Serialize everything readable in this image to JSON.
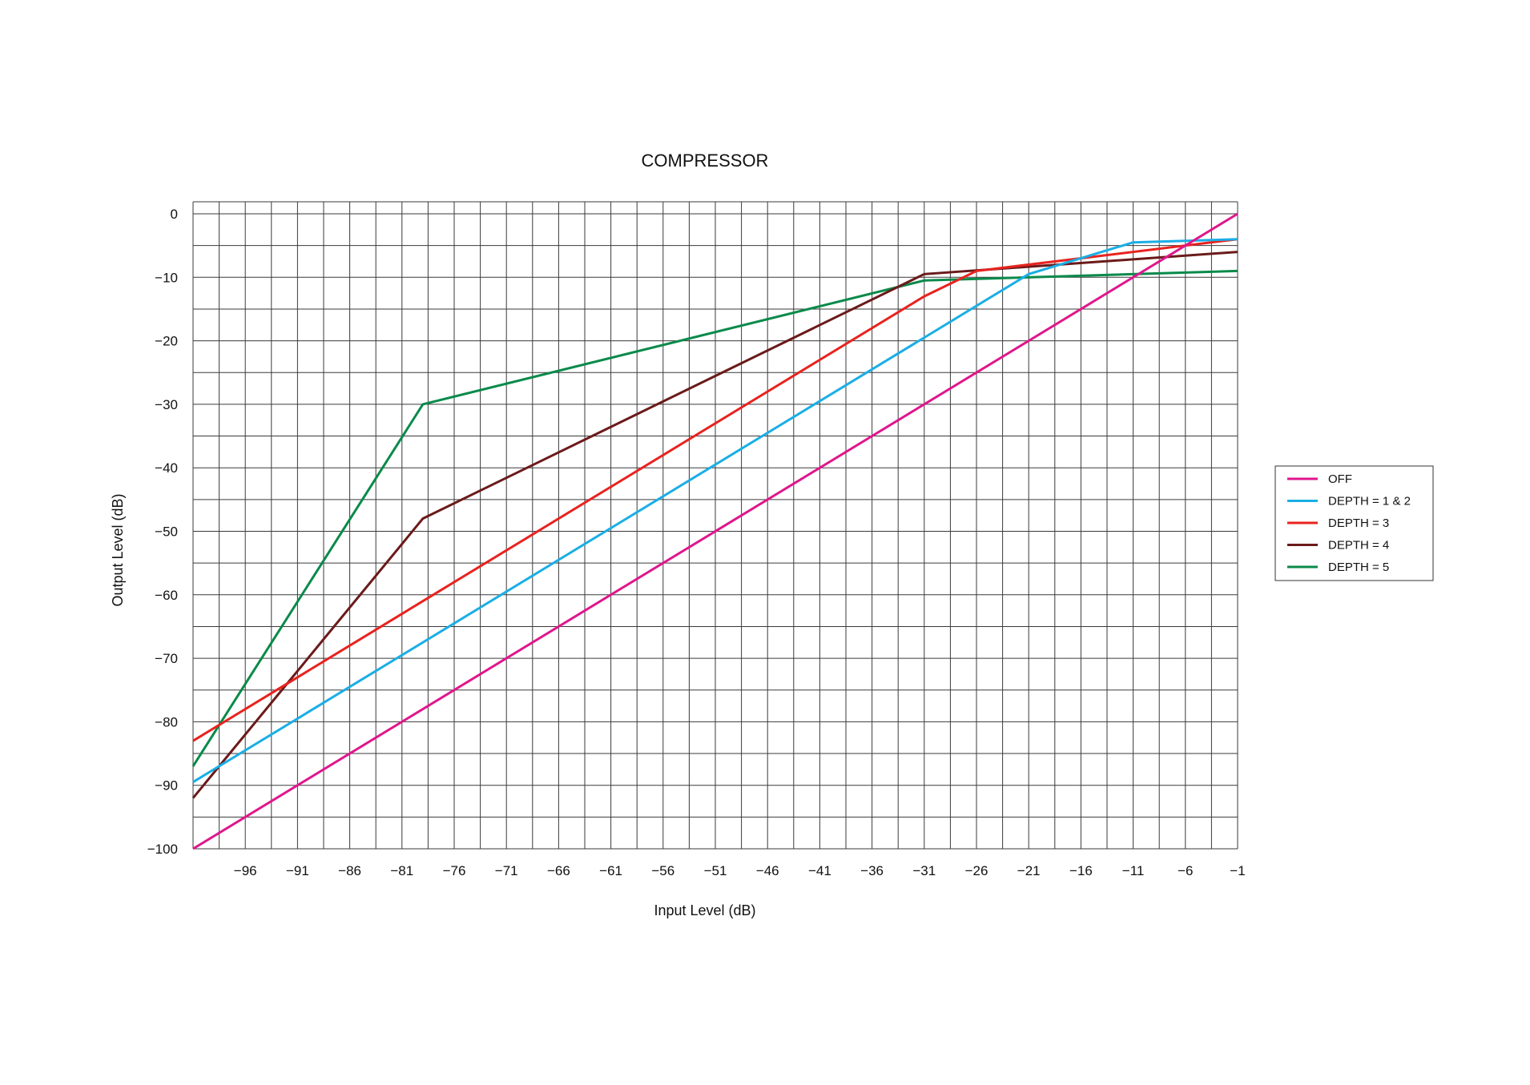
{
  "chart_data": {
    "type": "line",
    "title": "COMPRESSOR",
    "xlabel": "Input Level (dB)",
    "ylabel": "Output Level (dB)",
    "xlim": [
      -101,
      -1
    ],
    "ylim": [
      -100,
      0
    ],
    "x_ticks": [
      -96,
      -91,
      -86,
      -81,
      -76,
      -71,
      -66,
      -61,
      -56,
      -51,
      -46,
      -41,
      -36,
      -31,
      -26,
      -21,
      -16,
      -11,
      -6,
      -1
    ],
    "x_tick_labels": [
      "−96",
      "−91",
      "−86",
      "−81",
      "−76",
      "−71",
      "−66",
      "−61",
      "−56",
      "−51",
      "−46",
      "−41",
      "−36",
      "−31",
      "−26",
      "−21",
      "−16",
      "−11",
      "−6",
      "−1"
    ],
    "y_ticks": [
      0,
      -10,
      -20,
      -30,
      -40,
      -50,
      -60,
      -70,
      -80,
      -90,
      -100
    ],
    "y_tick_labels": [
      "0",
      "−10",
      "−20",
      "−30",
      "−40",
      "−50",
      "−60",
      "−70",
      "−80",
      "−90",
      "−100"
    ],
    "grid": true,
    "legend_position": "right",
    "series": [
      {
        "name": "OFF",
        "color": "#e0168c",
        "x": [
          -101,
          -1
        ],
        "y": [
          -100,
          0
        ]
      },
      {
        "name": "DEPTH = 1 & 2",
        "color": "#1aaee5",
        "x": [
          -101,
          -31,
          -21,
          -11,
          -1
        ],
        "y": [
          -89.5,
          -19.5,
          -9.5,
          -4.5,
          -4
        ]
      },
      {
        "name": "DEPTH = 3",
        "color": "#e8231f",
        "x": [
          -101,
          -79,
          -31,
          -26,
          -1
        ],
        "y": [
          -83,
          -61,
          -13,
          -9,
          -4
        ]
      },
      {
        "name": "DEPTH = 4",
        "color": "#6b1a1a",
        "x": [
          -101,
          -79,
          -31,
          -1
        ],
        "y": [
          -92,
          -48,
          -9.5,
          -6
        ]
      },
      {
        "name": "DEPTH = 5",
        "color": "#0a8a4a",
        "x": [
          -101,
          -79,
          -31,
          -1
        ],
        "y": [
          -87,
          -30,
          -10.5,
          -9
        ]
      }
    ]
  }
}
